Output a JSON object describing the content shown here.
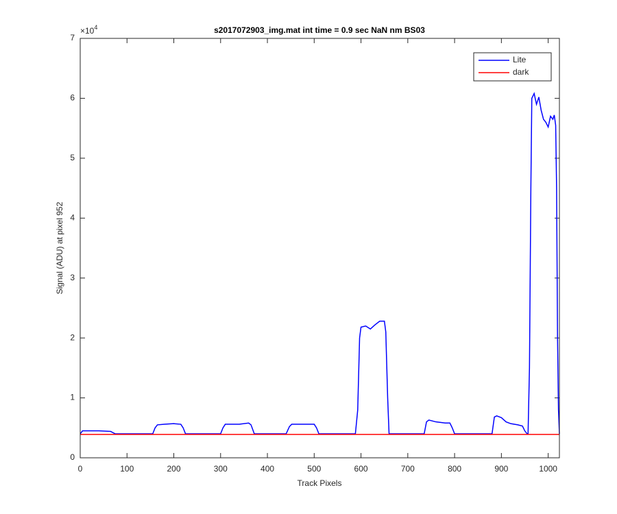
{
  "chart_data": {
    "type": "line",
    "title": "s2017072903_img.mat int time = 0.9 sec  NaN nm BS03",
    "x_label": "Track Pixels",
    "y_label": "Signal (ADU) at pixel 952",
    "y_scale_label": {
      "base": "×10",
      "exponent": "4"
    },
    "xlim": [
      0,
      1024
    ],
    "ylim": [
      0,
      7
    ],
    "xticks": [
      0,
      100,
      200,
      300,
      400,
      500,
      600,
      700,
      800,
      900,
      1000
    ],
    "yticks": [
      0,
      1,
      2,
      3,
      4,
      5,
      6,
      7
    ],
    "grid": false,
    "legend": "upper right",
    "series": [
      {
        "name": "Lite",
        "color": "#0000ff",
        "x": [
          0,
          5,
          10,
          40,
          65,
          70,
          75,
          155,
          160,
          165,
          180,
          200,
          215,
          220,
          225,
          300,
          305,
          310,
          340,
          360,
          365,
          372,
          440,
          447,
          452,
          500,
          505,
          510,
          588,
          593,
          597,
          600,
          610,
          620,
          630,
          640,
          650,
          653,
          657,
          660,
          735,
          740,
          745,
          760,
          780,
          790,
          795,
          800,
          880,
          885,
          890,
          900,
          910,
          920,
          935,
          945,
          950,
          955,
          957,
          960,
          963,
          965,
          970,
          975,
          980,
          985,
          990,
          995,
          1000,
          1005,
          1010,
          1013,
          1016,
          1018,
          1020,
          1022,
          1024
        ],
        "values": [
          0.4,
          0.45,
          0.45,
          0.45,
          0.44,
          0.42,
          0.4,
          0.4,
          0.5,
          0.55,
          0.56,
          0.57,
          0.56,
          0.5,
          0.4,
          0.4,
          0.5,
          0.56,
          0.56,
          0.58,
          0.55,
          0.4,
          0.4,
          0.52,
          0.56,
          0.56,
          0.5,
          0.4,
          0.4,
          0.8,
          2.0,
          2.18,
          2.2,
          2.15,
          2.22,
          2.28,
          2.28,
          2.1,
          1.0,
          0.4,
          0.4,
          0.6,
          0.63,
          0.6,
          0.58,
          0.58,
          0.5,
          0.4,
          0.4,
          0.68,
          0.7,
          0.67,
          0.6,
          0.57,
          0.55,
          0.53,
          0.45,
          0.4,
          0.4,
          1.5,
          4.5,
          6.0,
          6.08,
          5.9,
          6.02,
          5.8,
          5.65,
          5.6,
          5.52,
          5.7,
          5.65,
          5.72,
          5.55,
          4.5,
          2.0,
          0.8,
          0.4
        ]
      },
      {
        "name": "dark",
        "color": "#ff0000",
        "x": [
          0,
          1024
        ],
        "values": [
          0.39,
          0.39
        ]
      }
    ]
  }
}
